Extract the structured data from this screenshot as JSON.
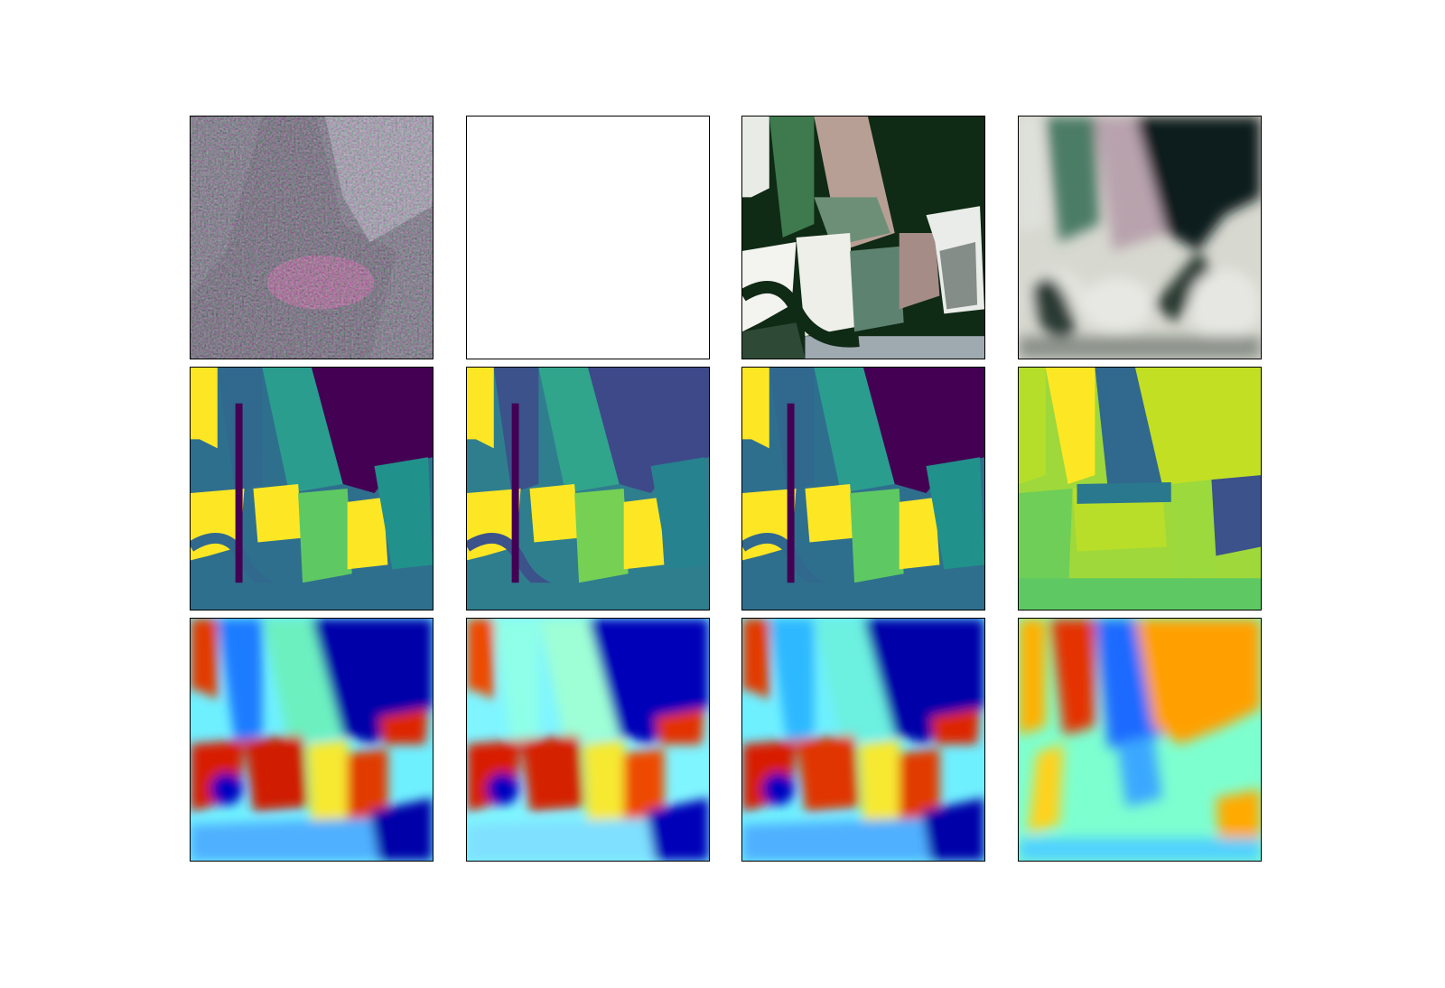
{
  "figure": {
    "layout": {
      "rows": 3,
      "columns": 4
    },
    "panels": [
      {
        "row": 1,
        "col": 1,
        "content": "sar-composite-image",
        "palette": [
          "#2a2a2a",
          "#e0208a",
          "#7ad9b8",
          "#ffffff"
        ]
      },
      {
        "row": 1,
        "col": 2,
        "content": "blank-white-image",
        "palette": [
          "#ffffff"
        ]
      },
      {
        "row": 1,
        "col": 3,
        "content": "optical-rgb-image",
        "palette": [
          "#0d2312",
          "#3a6b4a",
          "#b9b09a",
          "#f2f2ee"
        ]
      },
      {
        "row": 1,
        "col": 4,
        "content": "reconstructed-rgb-image",
        "palette": [
          "#0e1a18",
          "#4c7a64",
          "#cfcfc4",
          "#e6e8e2"
        ]
      },
      {
        "row": 2,
        "col": 1,
        "content": "viridis-map",
        "colormap": "viridis"
      },
      {
        "row": 2,
        "col": 2,
        "content": "viridis-map",
        "colormap": "viridis"
      },
      {
        "row": 2,
        "col": 3,
        "content": "viridis-map",
        "colormap": "viridis"
      },
      {
        "row": 2,
        "col": 4,
        "content": "viridis-map",
        "colormap": "viridis"
      },
      {
        "row": 3,
        "col": 1,
        "content": "jet-map",
        "colormap": "jet"
      },
      {
        "row": 3,
        "col": 2,
        "content": "jet-map",
        "colormap": "jet"
      },
      {
        "row": 3,
        "col": 3,
        "content": "jet-map",
        "colormap": "jet"
      },
      {
        "row": 3,
        "col": 4,
        "content": "jet-map",
        "colormap": "jet"
      }
    ]
  }
}
